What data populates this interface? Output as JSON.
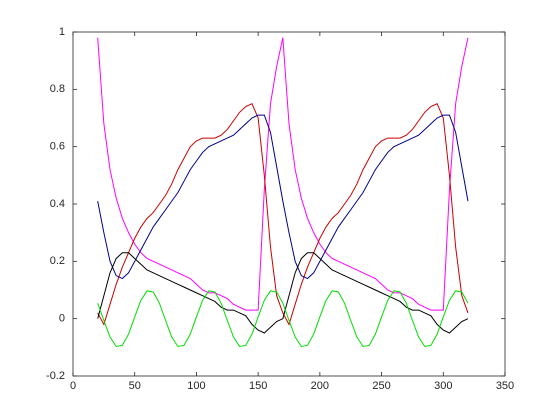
{
  "chart_data": {
    "type": "line",
    "x": [
      20,
      25,
      30,
      35,
      40,
      45,
      50,
      55,
      60,
      65,
      70,
      75,
      80,
      85,
      90,
      95,
      100,
      105,
      110,
      115,
      120,
      125,
      130,
      135,
      140,
      145,
      150,
      155,
      160,
      165,
      170,
      175,
      180,
      185,
      190,
      195,
      200,
      205,
      210,
      215,
      220,
      225,
      230,
      235,
      240,
      245,
      250,
      255,
      260,
      265,
      270,
      275,
      280,
      285,
      290,
      295,
      300,
      305,
      310,
      315,
      320
    ],
    "series": [
      {
        "color": "#ff00ff",
        "values": [
          0.98,
          0.68,
          0.52,
          0.42,
          0.35,
          0.3,
          0.26,
          0.23,
          0.21,
          0.2,
          0.19,
          0.18,
          0.17,
          0.16,
          0.15,
          0.14,
          0.12,
          0.1,
          0.09,
          0.09,
          0.08,
          0.07,
          0.05,
          0.04,
          0.03,
          0.03,
          0.03,
          0.45,
          0.75,
          0.88,
          0.98,
          0.68,
          0.52,
          0.42,
          0.35,
          0.3,
          0.26,
          0.23,
          0.21,
          0.2,
          0.19,
          0.18,
          0.17,
          0.16,
          0.15,
          0.14,
          0.12,
          0.1,
          0.09,
          0.09,
          0.08,
          0.07,
          0.05,
          0.04,
          0.03,
          0.03,
          0.03,
          0.45,
          0.75,
          0.88,
          0.98
        ]
      },
      {
        "color": "#cc0000",
        "values": [
          0.02,
          -0.02,
          0.05,
          0.12,
          0.18,
          0.23,
          0.28,
          0.32,
          0.35,
          0.37,
          0.4,
          0.43,
          0.47,
          0.52,
          0.56,
          0.6,
          0.62,
          0.63,
          0.63,
          0.63,
          0.64,
          0.66,
          0.69,
          0.72,
          0.74,
          0.75,
          0.7,
          0.5,
          0.25,
          0.08,
          0.02,
          -0.02,
          0.05,
          0.12,
          0.18,
          0.23,
          0.28,
          0.32,
          0.35,
          0.37,
          0.4,
          0.43,
          0.47,
          0.52,
          0.56,
          0.6,
          0.62,
          0.63,
          0.63,
          0.63,
          0.64,
          0.66,
          0.69,
          0.72,
          0.74,
          0.75,
          0.7,
          0.5,
          0.25,
          0.08,
          0.02
        ]
      },
      {
        "color": "#00008b",
        "values": [
          0.41,
          0.3,
          0.2,
          0.15,
          0.14,
          0.16,
          0.2,
          0.24,
          0.28,
          0.32,
          0.35,
          0.38,
          0.41,
          0.44,
          0.48,
          0.52,
          0.55,
          0.58,
          0.6,
          0.61,
          0.62,
          0.63,
          0.64,
          0.66,
          0.68,
          0.7,
          0.71,
          0.71,
          0.65,
          0.53,
          0.41,
          0.3,
          0.2,
          0.15,
          0.14,
          0.16,
          0.2,
          0.24,
          0.28,
          0.32,
          0.35,
          0.38,
          0.41,
          0.44,
          0.48,
          0.52,
          0.55,
          0.58,
          0.6,
          0.61,
          0.62,
          0.63,
          0.64,
          0.66,
          0.68,
          0.7,
          0.71,
          0.71,
          0.65,
          0.53,
          0.41
        ]
      },
      {
        "color": "#000000",
        "values": [
          0.0,
          0.08,
          0.16,
          0.21,
          0.23,
          0.23,
          0.21,
          0.19,
          0.17,
          0.16,
          0.15,
          0.14,
          0.13,
          0.12,
          0.11,
          0.1,
          0.09,
          0.08,
          0.07,
          0.06,
          0.04,
          0.03,
          0.03,
          0.02,
          0.01,
          -0.02,
          -0.04,
          -0.05,
          -0.03,
          -0.01,
          0.0,
          0.08,
          0.16,
          0.21,
          0.23,
          0.23,
          0.21,
          0.19,
          0.17,
          0.16,
          0.15,
          0.14,
          0.13,
          0.12,
          0.11,
          0.1,
          0.09,
          0.08,
          0.07,
          0.06,
          0.04,
          0.03,
          0.03,
          0.02,
          0.01,
          -0.02,
          -0.04,
          -0.05,
          -0.03,
          -0.01,
          0.0
        ]
      },
      {
        "color": "#00dd00",
        "values": [
          0.054,
          -0.006,
          -0.064,
          -0.097,
          -0.093,
          -0.054,
          0.006,
          0.064,
          0.097,
          0.093,
          0.054,
          -0.006,
          -0.064,
          -0.097,
          -0.093,
          -0.054,
          0.006,
          0.064,
          0.097,
          0.093,
          0.054,
          -0.006,
          -0.064,
          -0.097,
          -0.093,
          -0.054,
          0.006,
          0.064,
          0.097,
          0.093,
          0.054,
          -0.006,
          -0.064,
          -0.097,
          -0.093,
          -0.054,
          0.006,
          0.064,
          0.097,
          0.093,
          0.054,
          -0.006,
          -0.064,
          -0.097,
          -0.093,
          -0.054,
          0.006,
          0.064,
          0.097,
          0.093,
          0.054,
          -0.006,
          -0.064,
          -0.097,
          -0.093,
          -0.054,
          0.006,
          0.064,
          0.097,
          0.093,
          0.054
        ]
      }
    ],
    "xlim": [
      0,
      350
    ],
    "xticks": [
      0,
      50,
      100,
      150,
      200,
      250,
      300,
      350
    ],
    "ylim": [
      -0.2,
      1
    ],
    "yticks": [
      -0.2,
      0,
      0.2,
      0.4,
      0.6,
      0.8,
      1
    ]
  }
}
